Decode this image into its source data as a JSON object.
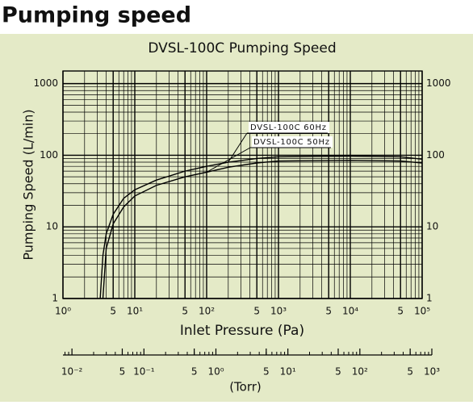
{
  "header": {
    "title": "Pumping speed"
  },
  "chart_data": {
    "type": "line",
    "title": "DVSL-100C Pumping Speed",
    "x_label": "Inlet Pressure (Pa)",
    "y_label": "Pumping Speed (L/min)",
    "x2_label": "(Torr)",
    "xscale": "log",
    "yscale": "log",
    "grid": true,
    "xlim": [
      1,
      100000
    ],
    "ylim": [
      1,
      1500
    ],
    "xticks": [
      {
        "value": 1,
        "label": "10⁰"
      },
      5,
      {
        "value": 10,
        "label": "10¹"
      },
      {
        "value": 50,
        "label": "5"
      },
      {
        "value": 100,
        "label": "10²"
      },
      {
        "value": 500,
        "label": "5"
      },
      {
        "value": 1000,
        "label": "10³"
      },
      {
        "value": 5000,
        "label": "5"
      },
      {
        "value": 10000,
        "label": "10⁴"
      },
      {
        "value": 50000,
        "label": "5"
      },
      {
        "value": 100000,
        "label": "10⁵"
      }
    ],
    "yticks": [
      1,
      10,
      100,
      1000
    ],
    "x2lim": [
      0.0075,
      1000
    ],
    "x2ticks": [
      {
        "value": 0.01,
        "label": "10⁻²"
      },
      {
        "value": 0.05,
        "label": "5"
      },
      {
        "value": 0.1,
        "label": "10⁻¹"
      },
      {
        "value": 0.5,
        "label": "5"
      },
      {
        "value": 1,
        "label": "10⁰"
      },
      5,
      {
        "value": 10,
        "label": "10¹"
      },
      {
        "value": 50,
        "label": "5"
      },
      {
        "value": 100,
        "label": "10²"
      },
      {
        "value": 500,
        "label": "5"
      },
      {
        "value": 1000,
        "label": "10³"
      }
    ],
    "x": [
      3.3,
      3.6,
      4,
      5,
      7,
      10,
      20,
      50,
      100,
      200,
      500,
      1000,
      10000,
      50000,
      100000
    ],
    "series": [
      {
        "name": "DVSL-100C 60Hz",
        "color": "#000000",
        "values": [
          1,
          4,
          8,
          15,
          25,
          33,
          45,
          60,
          70,
          80,
          90,
          95,
          97,
          95,
          88
        ]
      },
      {
        "name": "DVSL-100C 50Hz",
        "color": "#000000",
        "values": [
          null,
          1,
          5,
          11,
          19,
          27,
          38,
          50,
          58,
          68,
          78,
          83,
          85,
          83,
          78
        ]
      }
    ]
  }
}
